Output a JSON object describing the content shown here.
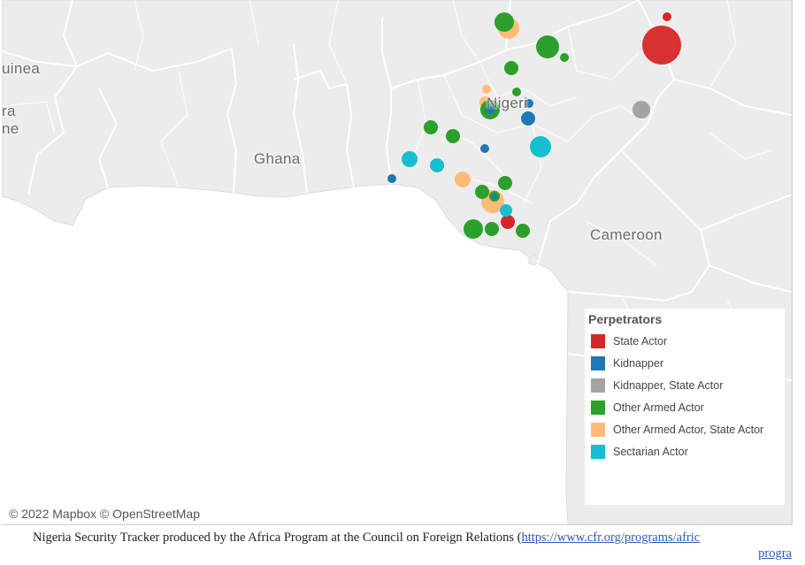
{
  "map": {
    "country_labels": {
      "guinea": "uinea",
      "left_fragment_1": "ra",
      "left_fragment_2": "ne",
      "ghana": "Ghana",
      "nigeria": "Nigeri",
      "cameroon": "Cameroon"
    },
    "attribution": "© 2022 Mapbox © OpenStreetMap",
    "colors": {
      "land": "#ececec",
      "sea": "#ffffff",
      "border": "#ffffff"
    }
  },
  "legend": {
    "title": "Perpetrators",
    "items": [
      {
        "label": "State Actor",
        "color": "#d62728"
      },
      {
        "label": "Kidnapper",
        "color": "#1f77b4"
      },
      {
        "label": "Kidnapper, State Actor",
        "color": "#a3a3a3"
      },
      {
        "label": "Other Armed Actor",
        "color": "#2ca02c"
      },
      {
        "label": "Other Armed Actor, State Actor",
        "color": "#ffbb78"
      },
      {
        "label": "Sectarian Actor",
        "color": "#17becf"
      }
    ]
  },
  "footer": {
    "text": "Nigeria Security Tracker produced by the Africa Program at the Council on Foreign Relations (",
    "link_part1": "https://www.cfr.org/programs/afric",
    "link_part2": "progra"
  }
}
